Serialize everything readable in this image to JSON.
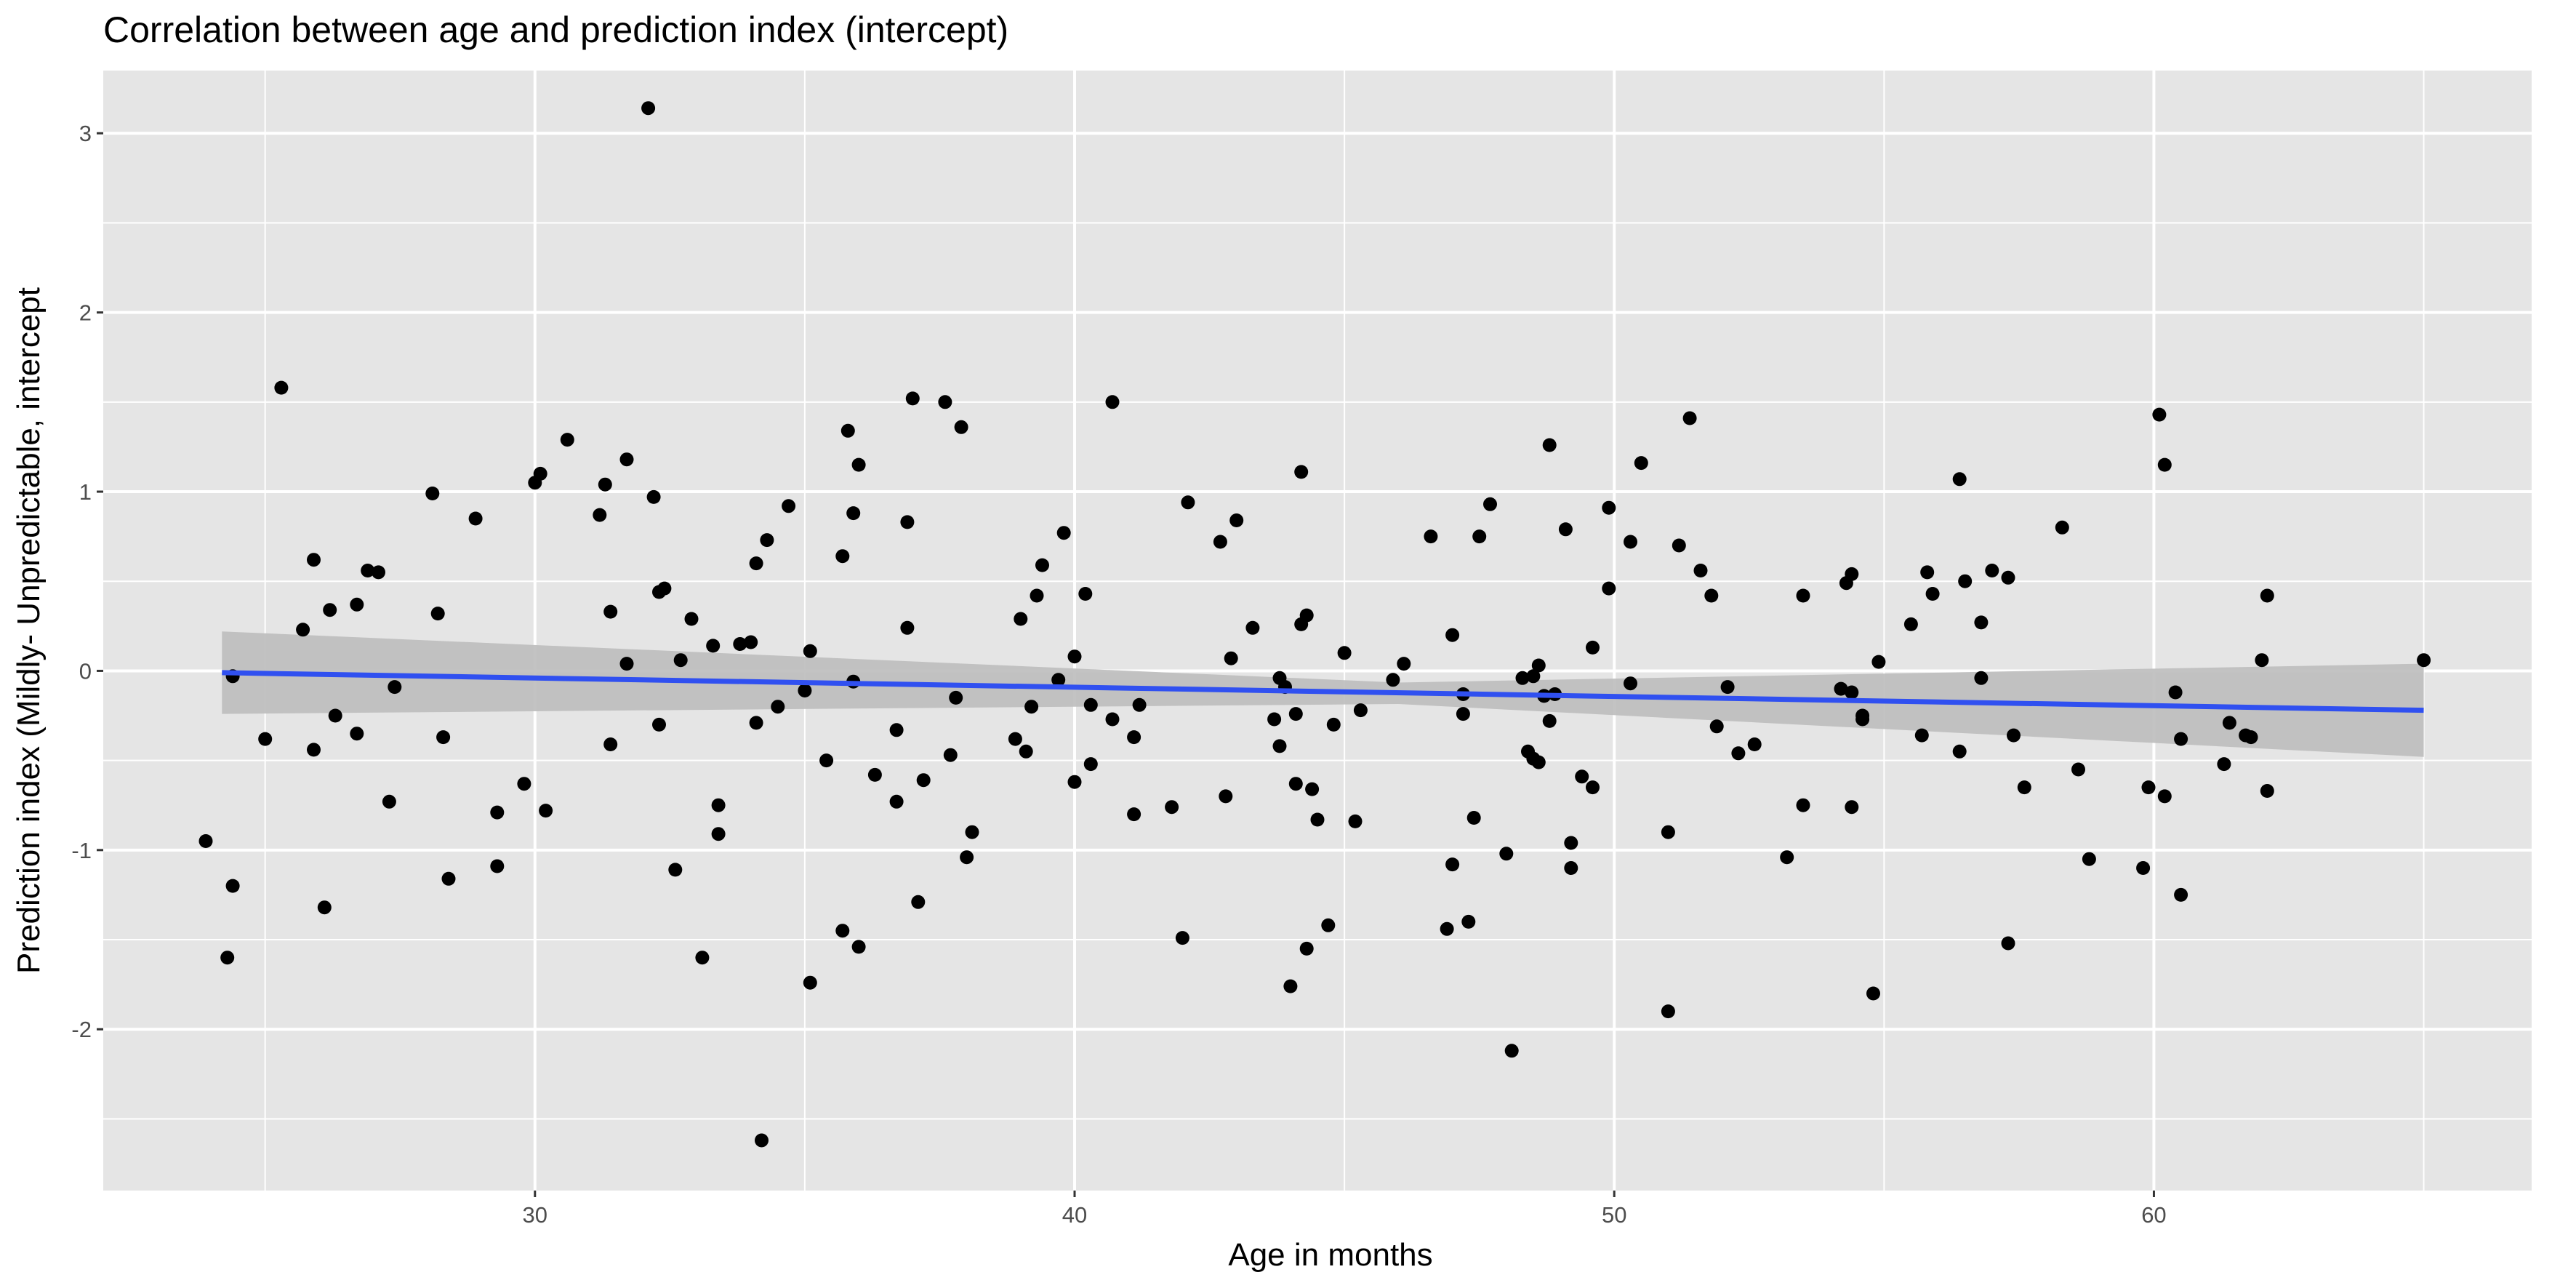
{
  "chart_data": {
    "type": "scatter",
    "title": "Correlation between age and prediction index (intercept)",
    "xlabel": "Age in months",
    "ylabel": "Prediction index (Mildly- Unpredictable, intercept",
    "xlim": [
      22.0,
      67.0
    ],
    "ylim": [
      -2.9,
      3.35
    ],
    "x_ticks": [
      30,
      40,
      50,
      60
    ],
    "y_ticks": [
      -2,
      -1,
      0,
      1,
      2,
      3
    ],
    "grid": true,
    "colors": {
      "panel": "#e5e5e5",
      "grid": "#ffffff",
      "points": "#000000",
      "trend_line": "#3050f0",
      "confidence_band": "#bdbdbd"
    },
    "trend_line": {
      "x": [
        24.2,
        65.0
      ],
      "y": [
        -0.01,
        -0.22
      ],
      "ci_lower": [
        -0.24,
        -0.48
      ],
      "ci_upper": [
        0.22,
        0.04
      ],
      "ci_mid_x": 46.0,
      "ci_mid_lower": -0.185,
      "ci_mid_upper": -0.065
    },
    "points": [
      [
        23.9,
        -0.95
      ],
      [
        24.3,
        -1.6
      ],
      [
        24.4,
        -0.03
      ],
      [
        24.4,
        -1.2
      ],
      [
        25.0,
        -0.38
      ],
      [
        25.3,
        1.58
      ],
      [
        25.7,
        0.23
      ],
      [
        25.9,
        0.62
      ],
      [
        25.9,
        -0.44
      ],
      [
        26.1,
        -1.32
      ],
      [
        26.2,
        0.34
      ],
      [
        26.3,
        -0.25
      ],
      [
        26.7,
        0.37
      ],
      [
        26.7,
        -0.35
      ],
      [
        26.9,
        0.56
      ],
      [
        27.1,
        0.55
      ],
      [
        27.3,
        -0.73
      ],
      [
        27.4,
        -0.09
      ],
      [
        28.1,
        0.99
      ],
      [
        28.2,
        0.32
      ],
      [
        28.3,
        -0.37
      ],
      [
        28.4,
        -1.16
      ],
      [
        28.9,
        0.85
      ],
      [
        29.3,
        -0.79
      ],
      [
        29.3,
        -1.09
      ],
      [
        29.8,
        -0.63
      ],
      [
        30.0,
        1.05
      ],
      [
        30.1,
        1.1
      ],
      [
        30.2,
        -0.78
      ],
      [
        30.6,
        1.29
      ],
      [
        31.2,
        0.87
      ],
      [
        31.3,
        1.04
      ],
      [
        31.4,
        0.33
      ],
      [
        31.4,
        -0.41
      ],
      [
        31.7,
        1.18
      ],
      [
        31.7,
        0.04
      ],
      [
        32.1,
        3.14
      ],
      [
        32.2,
        0.97
      ],
      [
        32.3,
        0.44
      ],
      [
        32.3,
        -0.3
      ],
      [
        32.4,
        0.46
      ],
      [
        32.6,
        -1.11
      ],
      [
        32.7,
        0.06
      ],
      [
        32.9,
        0.29
      ],
      [
        33.1,
        -1.6
      ],
      [
        33.3,
        0.14
      ],
      [
        33.4,
        -0.75
      ],
      [
        33.4,
        -0.91
      ],
      [
        33.8,
        0.15
      ],
      [
        34.0,
        0.16
      ],
      [
        34.1,
        0.6
      ],
      [
        34.1,
        -0.29
      ],
      [
        34.2,
        -2.62
      ],
      [
        34.3,
        0.73
      ],
      [
        34.5,
        -0.2
      ],
      [
        34.7,
        0.92
      ],
      [
        35.0,
        -0.11
      ],
      [
        35.1,
        0.11
      ],
      [
        35.1,
        -1.74
      ],
      [
        35.4,
        -0.5
      ],
      [
        35.7,
        0.64
      ],
      [
        35.7,
        -1.45
      ],
      [
        35.8,
        1.34
      ],
      [
        35.9,
        0.88
      ],
      [
        35.9,
        -0.06
      ],
      [
        36.0,
        1.15
      ],
      [
        36.0,
        -1.54
      ],
      [
        36.3,
        -0.58
      ],
      [
        36.7,
        -0.73
      ],
      [
        36.7,
        -0.33
      ],
      [
        36.9,
        0.24
      ],
      [
        36.9,
        0.83
      ],
      [
        37.0,
        1.52
      ],
      [
        37.1,
        -1.29
      ],
      [
        37.2,
        -0.61
      ],
      [
        37.6,
        1.5
      ],
      [
        37.7,
        -0.47
      ],
      [
        37.8,
        -0.15
      ],
      [
        37.9,
        1.36
      ],
      [
        38.0,
        -1.04
      ],
      [
        38.1,
        -0.9
      ],
      [
        38.9,
        -0.38
      ],
      [
        39.0,
        0.29
      ],
      [
        39.1,
        -0.45
      ],
      [
        39.2,
        -0.2
      ],
      [
        39.3,
        0.42
      ],
      [
        39.4,
        0.59
      ],
      [
        39.7,
        -0.05
      ],
      [
        39.8,
        0.77
      ],
      [
        40.0,
        0.08
      ],
      [
        40.0,
        -0.62
      ],
      [
        40.2,
        0.43
      ],
      [
        40.3,
        -0.19
      ],
      [
        40.3,
        -0.52
      ],
      [
        40.7,
        1.5
      ],
      [
        40.7,
        -0.27
      ],
      [
        41.1,
        -0.37
      ],
      [
        41.1,
        -0.8
      ],
      [
        41.2,
        -0.19
      ],
      [
        41.8,
        -0.76
      ],
      [
        42.0,
        -1.49
      ],
      [
        42.1,
        0.94
      ],
      [
        42.7,
        0.72
      ],
      [
        42.8,
        -0.7
      ],
      [
        42.9,
        0.07
      ],
      [
        43.0,
        0.84
      ],
      [
        43.3,
        0.24
      ],
      [
        43.7,
        -0.27
      ],
      [
        43.8,
        -0.04
      ],
      [
        43.8,
        -0.42
      ],
      [
        43.9,
        -0.09
      ],
      [
        44.0,
        -1.76
      ],
      [
        44.1,
        -0.24
      ],
      [
        44.1,
        -0.63
      ],
      [
        44.2,
        0.26
      ],
      [
        44.2,
        1.11
      ],
      [
        44.3,
        -1.55
      ],
      [
        44.3,
        0.31
      ],
      [
        44.4,
        -0.66
      ],
      [
        44.5,
        -0.83
      ],
      [
        44.7,
        -1.42
      ],
      [
        44.8,
        -0.3
      ],
      [
        45.0,
        0.1
      ],
      [
        45.2,
        -0.84
      ],
      [
        45.3,
        -0.22
      ],
      [
        45.9,
        -0.05
      ],
      [
        46.1,
        0.04
      ],
      [
        46.6,
        0.75
      ],
      [
        46.9,
        -1.44
      ],
      [
        47.0,
        -1.08
      ],
      [
        47.0,
        0.2
      ],
      [
        47.2,
        -0.24
      ],
      [
        47.2,
        -0.13
      ],
      [
        47.3,
        -1.4
      ],
      [
        47.4,
        -0.82
      ],
      [
        47.5,
        0.75
      ],
      [
        47.7,
        0.93
      ],
      [
        48.0,
        -1.02
      ],
      [
        48.1,
        -2.12
      ],
      [
        48.3,
        -0.04
      ],
      [
        48.4,
        -0.45
      ],
      [
        48.5,
        -0.03
      ],
      [
        48.5,
        -0.49
      ],
      [
        48.6,
        -0.51
      ],
      [
        48.6,
        0.03
      ],
      [
        48.7,
        -0.14
      ],
      [
        48.8,
        -0.28
      ],
      [
        48.8,
        1.26
      ],
      [
        48.9,
        -0.13
      ],
      [
        49.1,
        0.79
      ],
      [
        49.2,
        -1.1
      ],
      [
        49.2,
        -0.96
      ],
      [
        49.4,
        -0.59
      ],
      [
        49.6,
        0.13
      ],
      [
        49.6,
        -0.65
      ],
      [
        49.9,
        0.46
      ],
      [
        49.9,
        0.91
      ],
      [
        50.3,
        -0.07
      ],
      [
        50.3,
        0.72
      ],
      [
        50.5,
        1.16
      ],
      [
        51.0,
        -0.9
      ],
      [
        51.0,
        -1.9
      ],
      [
        51.2,
        0.7
      ],
      [
        51.4,
        1.41
      ],
      [
        51.6,
        0.56
      ],
      [
        51.8,
        0.42
      ],
      [
        51.9,
        -0.31
      ],
      [
        52.1,
        -0.09
      ],
      [
        52.3,
        -0.46
      ],
      [
        52.6,
        -0.41
      ],
      [
        53.2,
        -1.04
      ],
      [
        53.5,
        -0.75
      ],
      [
        53.5,
        0.42
      ],
      [
        54.2,
        -0.1
      ],
      [
        54.3,
        0.49
      ],
      [
        54.4,
        0.54
      ],
      [
        54.4,
        -0.12
      ],
      [
        54.4,
        -0.76
      ],
      [
        54.6,
        -0.25
      ],
      [
        54.6,
        -0.27
      ],
      [
        54.8,
        -1.8
      ],
      [
        54.9,
        0.05
      ],
      [
        55.5,
        0.26
      ],
      [
        55.7,
        -0.36
      ],
      [
        55.8,
        0.55
      ],
      [
        55.9,
        0.43
      ],
      [
        56.4,
        1.07
      ],
      [
        56.4,
        -0.45
      ],
      [
        56.5,
        0.5
      ],
      [
        56.8,
        -0.04
      ],
      [
        56.8,
        0.27
      ],
      [
        57.0,
        0.56
      ],
      [
        57.3,
        0.52
      ],
      [
        57.3,
        -1.52
      ],
      [
        57.4,
        -0.36
      ],
      [
        57.6,
        -0.65
      ],
      [
        58.3,
        0.8
      ],
      [
        58.6,
        -0.55
      ],
      [
        58.8,
        -1.05
      ],
      [
        59.8,
        -1.1
      ],
      [
        59.9,
        -0.65
      ],
      [
        60.1,
        1.43
      ],
      [
        60.2,
        -0.7
      ],
      [
        60.2,
        1.15
      ],
      [
        60.4,
        -0.12
      ],
      [
        60.5,
        -0.38
      ],
      [
        60.5,
        -1.25
      ],
      [
        61.3,
        -0.52
      ],
      [
        61.4,
        -0.29
      ],
      [
        61.7,
        -0.36
      ],
      [
        61.8,
        -0.37
      ],
      [
        62.0,
        0.06
      ],
      [
        62.1,
        0.42
      ],
      [
        62.1,
        -0.67
      ],
      [
        65.0,
        0.06
      ]
    ]
  }
}
